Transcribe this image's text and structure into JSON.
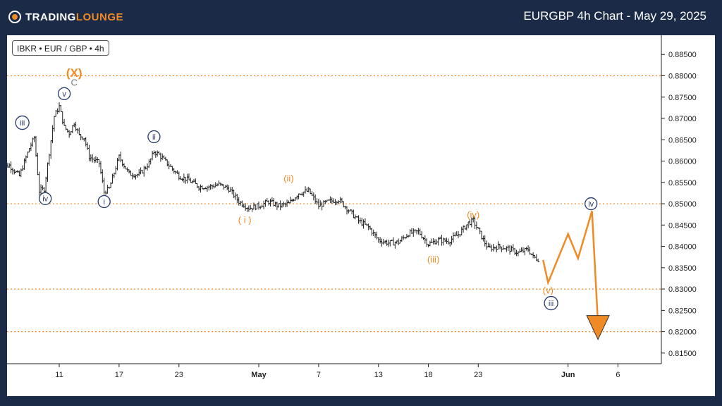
{
  "header": {
    "logo_main": "TRADING",
    "logo_accent": "LOUNGE",
    "title": "EURGBP 4h Chart - May 29, 2025"
  },
  "symbol_label": "IBKR • EUR / GBP • 4h",
  "colors": {
    "background": "#1b2a47",
    "accent": "#f08a24",
    "navy": "#243a6b",
    "candle": "#222222"
  },
  "chart_data": {
    "type": "line",
    "title": "EURGBP 4h Chart - May 29, 2025",
    "ylim": [
      0.8125,
      0.8895
    ],
    "x_axis": {
      "ticks": [
        {
          "label": "11",
          "day": 11,
          "bold": false
        },
        {
          "label": "17",
          "day": 17,
          "bold": false
        },
        {
          "label": "23",
          "day": 23,
          "bold": false
        },
        {
          "label": "May",
          "day": 31,
          "bold": true
        },
        {
          "label": "7",
          "day": 37,
          "bold": false
        },
        {
          "label": "13",
          "day": 43,
          "bold": false
        },
        {
          "label": "18",
          "day": 48,
          "bold": false
        },
        {
          "label": "23",
          "day": 53,
          "bold": false
        },
        {
          "label": "Jun",
          "day": 62,
          "bold": true
        },
        {
          "label": "6",
          "day": 67,
          "bold": false
        }
      ]
    },
    "y_axis": {
      "ticks": [
        0.885,
        0.88,
        0.875,
        0.87,
        0.865,
        0.86,
        0.855,
        0.85,
        0.845,
        0.84,
        0.835,
        0.83,
        0.825,
        0.82,
        0.815
      ],
      "tick_labels": [
        "0.88500",
        "0.88000",
        "0.87500",
        "0.87000",
        "0.86500",
        "0.86000",
        "0.85500",
        "0.85000",
        "0.84500",
        "0.84000",
        "0.83500",
        "0.83000",
        "0.82500",
        "0.82000",
        "0.81500"
      ]
    },
    "reference_lines": [
      0.88,
      0.85,
      0.83,
      0.82
    ],
    "price_path": [
      [
        5.0,
        0.8585
      ],
      [
        6.0,
        0.859
      ],
      [
        7.0,
        0.8565
      ],
      [
        8.0,
        0.863
      ],
      [
        8.5,
        0.8655
      ],
      [
        9.0,
        0.853
      ],
      [
        9.5,
        0.8535
      ],
      [
        10.0,
        0.862
      ],
      [
        10.5,
        0.8705
      ],
      [
        11.0,
        0.8728
      ],
      [
        11.5,
        0.868
      ],
      [
        12.0,
        0.8665
      ],
      [
        12.5,
        0.869
      ],
      [
        13.0,
        0.866
      ],
      [
        13.5,
        0.8655
      ],
      [
        14.0,
        0.861
      ],
      [
        15.0,
        0.8595
      ],
      [
        15.5,
        0.8528
      ],
      [
        16.0,
        0.8535
      ],
      [
        17.0,
        0.861
      ],
      [
        18.0,
        0.857
      ],
      [
        19.0,
        0.8568
      ],
      [
        20.0,
        0.8595
      ],
      [
        20.5,
        0.8622
      ],
      [
        21.0,
        0.8615
      ],
      [
        22.0,
        0.859
      ],
      [
        23.0,
        0.8565
      ],
      [
        24.0,
        0.8555
      ],
      [
        25.0,
        0.854
      ],
      [
        26.0,
        0.854
      ],
      [
        27.0,
        0.8545
      ],
      [
        28.0,
        0.8535
      ],
      [
        29.0,
        0.8505
      ],
      [
        30.0,
        0.849
      ],
      [
        31.0,
        0.8495
      ],
      [
        32.0,
        0.8505
      ],
      [
        33.0,
        0.8495
      ],
      [
        34.0,
        0.85
      ],
      [
        35.0,
        0.8525
      ],
      [
        36.0,
        0.853
      ],
      [
        37.0,
        0.8495
      ],
      [
        38.0,
        0.8505
      ],
      [
        39.0,
        0.851
      ],
      [
        40.0,
        0.8485
      ],
      [
        41.0,
        0.846
      ],
      [
        42.0,
        0.8445
      ],
      [
        43.0,
        0.8415
      ],
      [
        44.0,
        0.8408
      ],
      [
        45.0,
        0.841
      ],
      [
        46.0,
        0.843
      ],
      [
        47.0,
        0.8435
      ],
      [
        48.0,
        0.8405
      ],
      [
        49.0,
        0.8415
      ],
      [
        50.0,
        0.8412
      ],
      [
        51.0,
        0.8428
      ],
      [
        52.0,
        0.8455
      ],
      [
        52.5,
        0.846
      ],
      [
        53.0,
        0.8438
      ],
      [
        53.5,
        0.8415
      ],
      [
        54.0,
        0.8395
      ],
      [
        55.0,
        0.84
      ],
      [
        56.0,
        0.8395
      ],
      [
        57.0,
        0.8385
      ],
      [
        58.0,
        0.8393
      ],
      [
        58.5,
        0.8375
      ],
      [
        59.0,
        0.837
      ]
    ],
    "projection_path": [
      [
        59.5,
        0.8368
      ],
      [
        60.0,
        0.8315
      ],
      [
        62.0,
        0.8429
      ],
      [
        63.0,
        0.8372
      ],
      [
        64.4,
        0.8483
      ],
      [
        65.0,
        0.8195
      ]
    ],
    "wave_labels": [
      {
        "text": "(X)",
        "day": 12.5,
        "price": 0.8808,
        "color": "orange",
        "circled": false,
        "size": "large"
      },
      {
        "text": "C",
        "day": 12.5,
        "price": 0.8785,
        "color": "gray",
        "circled": false,
        "size": "small"
      },
      {
        "text": "v",
        "day": 11.5,
        "price": 0.8758,
        "color": "navy",
        "circled": true,
        "size": "small"
      },
      {
        "text": "iii",
        "day": 7.3,
        "price": 0.869,
        "color": "navy",
        "circled": true,
        "size": "small"
      },
      {
        "text": "iv",
        "day": 9.6,
        "price": 0.8512,
        "color": "navy",
        "circled": true,
        "size": "small"
      },
      {
        "text": "i",
        "day": 15.5,
        "price": 0.8505,
        "color": "navy",
        "circled": true,
        "size": "small"
      },
      {
        "text": "ii",
        "day": 20.5,
        "price": 0.8657,
        "color": "navy",
        "circled": true,
        "size": "small"
      },
      {
        "text": "( i )",
        "day": 29.6,
        "price": 0.8462,
        "color": "orange",
        "circled": false,
        "size": "small"
      },
      {
        "text": "(ii)",
        "day": 34.0,
        "price": 0.856,
        "color": "orange",
        "circled": false,
        "size": "small"
      },
      {
        "text": "(iii)",
        "day": 48.5,
        "price": 0.837,
        "color": "orange",
        "circled": false,
        "size": "small"
      },
      {
        "text": "(iv)",
        "day": 52.5,
        "price": 0.8475,
        "color": "orange",
        "circled": false,
        "size": "small"
      },
      {
        "text": "(v)",
        "day": 60.0,
        "price": 0.8297,
        "color": "orange",
        "circled": false,
        "size": "small"
      },
      {
        "text": "iii",
        "day": 60.3,
        "price": 0.8267,
        "color": "navy",
        "circled": true,
        "size": "small"
      },
      {
        "text": "iv",
        "day": 64.3,
        "price": 0.85,
        "color": "navy",
        "circled": true,
        "size": "small"
      }
    ]
  }
}
